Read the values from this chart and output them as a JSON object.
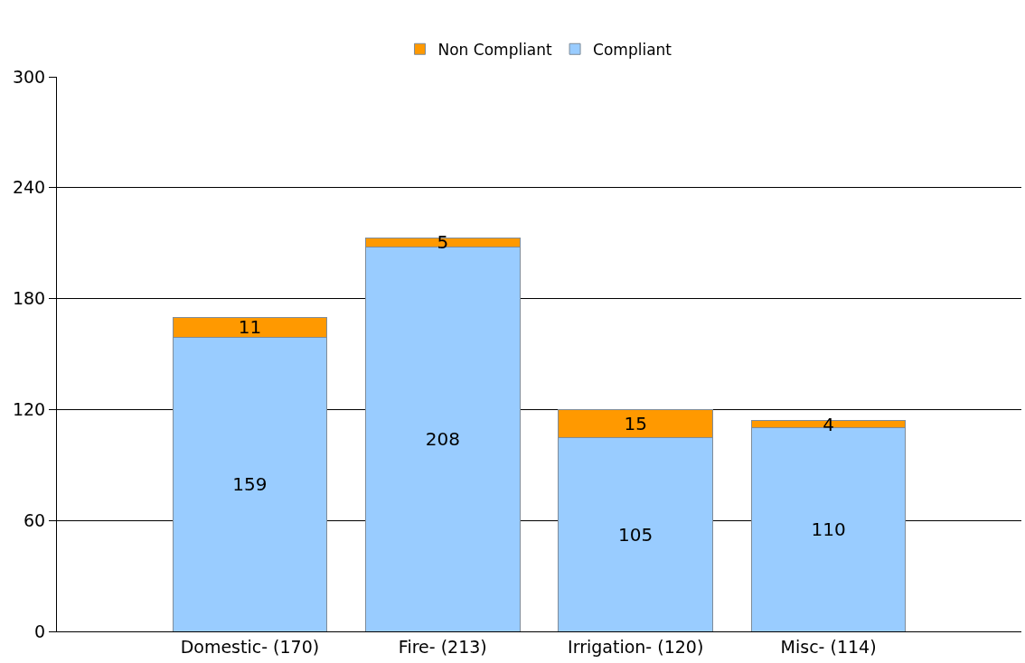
{
  "chart_data": {
    "type": "bar",
    "stacked": true,
    "categories": [
      "Domestic- (170)",
      "Fire- (213)",
      "Irrigation- (120)",
      "Misc- (114)"
    ],
    "series": [
      {
        "name": "Compliant",
        "color": "#99ccff",
        "values": [
          159,
          208,
          105,
          110
        ]
      },
      {
        "name": "Non Compliant",
        "color": "#ff9900",
        "values": [
          11,
          5,
          15,
          4
        ]
      }
    ],
    "ylim": [
      0,
      300
    ],
    "yticks": [
      0,
      60,
      120,
      180,
      240,
      300
    ],
    "grid": "y",
    "legend": "top",
    "data_labels": true
  }
}
